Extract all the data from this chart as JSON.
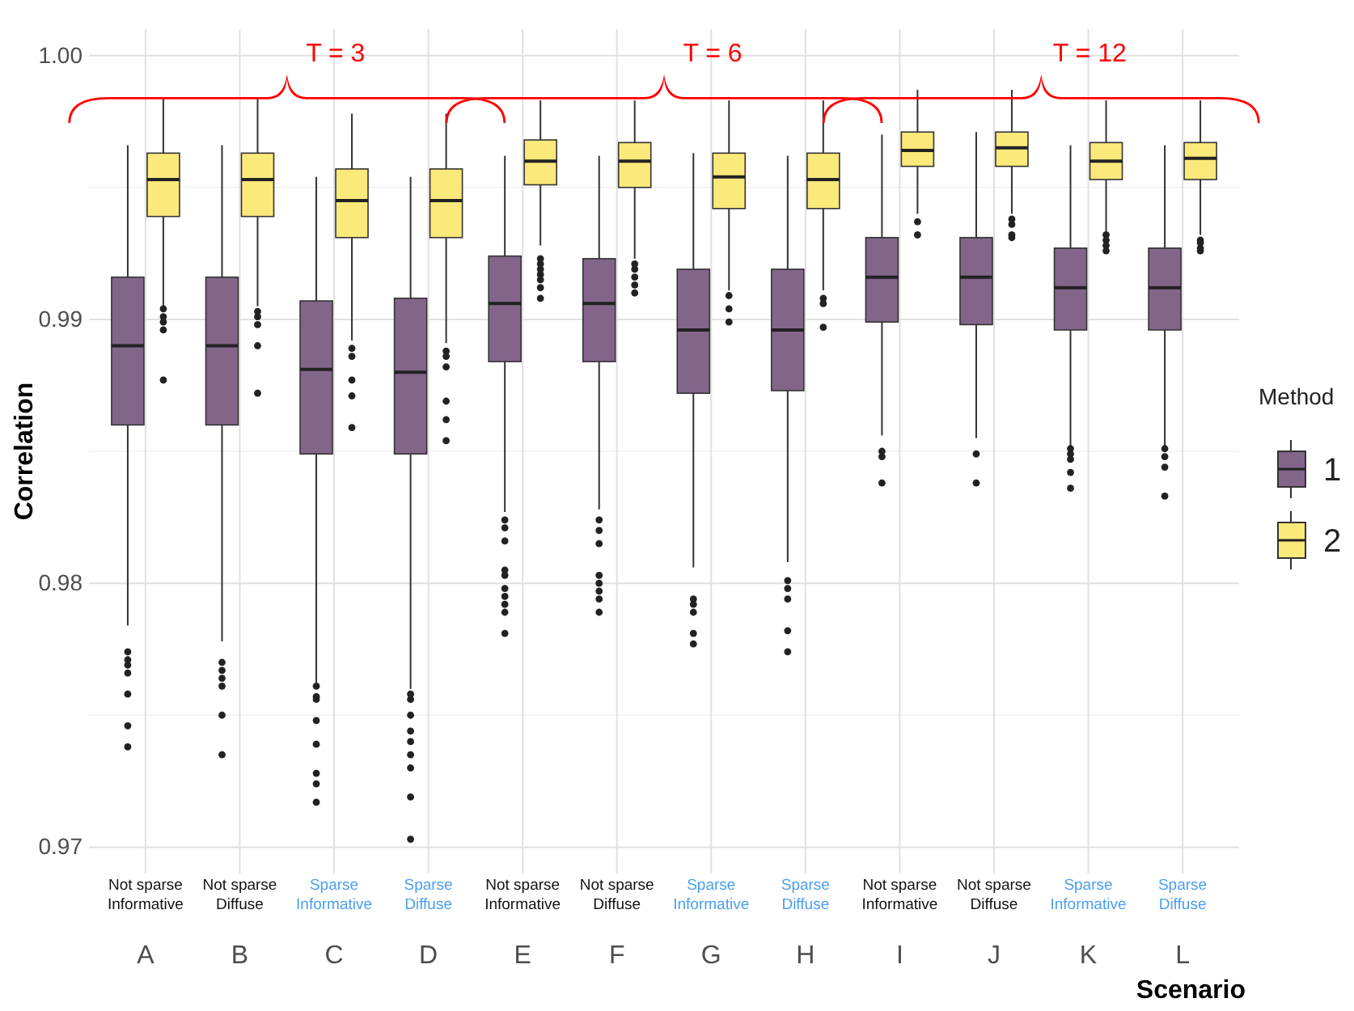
{
  "chart_data": {
    "type": "box",
    "xlabel": "Scenario",
    "ylabel": "Correlation",
    "legend_title": "Method",
    "categories": [
      "A",
      "B",
      "C",
      "D",
      "E",
      "F",
      "G",
      "H",
      "I",
      "J",
      "K",
      "L"
    ],
    "ylim": [
      0.969,
      1.001
    ],
    "yticks": [
      0.97,
      0.98,
      0.99,
      {
        "value": 1,
        "label": "1.00"
      }
    ],
    "grid": true,
    "legend": "right",
    "annotations": [
      "T = 3",
      "T = 6",
      "T = 12",
      "Not sparse\nInformative",
      "Not sparse\nDiffuse",
      "Sparse\nInformative",
      "Sparse\nDiffuse",
      "Not sparse\nInformative",
      "Not sparse\nDiffuse",
      "Sparse\nInformative",
      "Sparse\nDiffuse",
      "Not sparse\nInformative",
      "Not sparse\nDiffuse",
      "Sparse\nInformative",
      "Sparse\nDiffuse"
    ],
    "series": [
      {
        "name": "1",
        "color": "#83658a",
        "boxes": [
          {
            "low": 0.9784,
            "q1": 0.986,
            "median": 0.989,
            "q3": 0.9916,
            "high": 0.9966,
            "outliers": [
              0.9774,
              0.9771,
              0.9769,
              0.9766,
              0.9758,
              0.9746,
              0.9738
            ]
          },
          {
            "low": 0.9778,
            "q1": 0.986,
            "median": 0.989,
            "q3": 0.9916,
            "high": 0.9966,
            "outliers": [
              0.977,
              0.9767,
              0.9764,
              0.9761,
              0.975,
              0.9735
            ]
          },
          {
            "low": 0.9762,
            "q1": 0.9849,
            "median": 0.9881,
            "q3": 0.9907,
            "high": 0.9954,
            "outliers": [
              0.9761,
              0.9757,
              0.9756,
              0.9748,
              0.9739,
              0.9728,
              0.9724,
              0.9717
            ]
          },
          {
            "low": 0.976,
            "q1": 0.9849,
            "median": 0.988,
            "q3": 0.9908,
            "high": 0.9954,
            "outliers": [
              0.9758,
              0.9756,
              0.975,
              0.9744,
              0.974,
              0.9735,
              0.973,
              0.9719,
              0.9703
            ]
          },
          {
            "low": 0.9827,
            "q1": 0.9884,
            "median": 0.9906,
            "q3": 0.9924,
            "high": 0.9962,
            "outliers": [
              0.9824,
              0.9821,
              0.9816,
              0.9805,
              0.9803,
              0.9798,
              0.9795,
              0.9792,
              0.9789,
              0.9781
            ]
          },
          {
            "low": 0.9828,
            "q1": 0.9884,
            "median": 0.9906,
            "q3": 0.9923,
            "high": 0.9962,
            "outliers": [
              0.9824,
              0.982,
              0.9815,
              0.9803,
              0.98,
              0.9797,
              0.9794,
              0.9789
            ]
          },
          {
            "low": 0.9806,
            "q1": 0.9872,
            "median": 0.9896,
            "q3": 0.9919,
            "high": 0.9963,
            "outliers": [
              0.9794,
              0.9792,
              0.9789,
              0.9781,
              0.9777
            ]
          },
          {
            "low": 0.9808,
            "q1": 0.9873,
            "median": 0.9896,
            "q3": 0.9919,
            "high": 0.9962,
            "outliers": [
              0.9801,
              0.9798,
              0.9794,
              0.9782,
              0.9774
            ]
          },
          {
            "low": 0.9856,
            "q1": 0.9899,
            "median": 0.9916,
            "q3": 0.9931,
            "high": 0.997,
            "outliers": [
              0.985,
              0.9848,
              0.9838
            ]
          },
          {
            "low": 0.9855,
            "q1": 0.9898,
            "median": 0.9916,
            "q3": 0.9931,
            "high": 0.9971,
            "outliers": [
              0.9849,
              0.9838
            ]
          },
          {
            "low": 0.9852,
            "q1": 0.9896,
            "median": 0.9912,
            "q3": 0.9927,
            "high": 0.9966,
            "outliers": [
              0.9851,
              0.9849,
              0.9847,
              0.9842,
              0.9836
            ]
          },
          {
            "low": 0.9852,
            "q1": 0.9896,
            "median": 0.9912,
            "q3": 0.9927,
            "high": 0.9966,
            "outliers": [
              0.9851,
              0.9848,
              0.9844,
              0.9833
            ]
          }
        ]
      },
      {
        "name": "2",
        "color": "#fce97b",
        "boxes": [
          {
            "low": 0.9905,
            "q1": 0.9939,
            "median": 0.9953,
            "q3": 0.9963,
            "high": 0.9984,
            "outliers": [
              0.9904,
              0.9901,
              0.9899,
              0.9896,
              0.9877
            ]
          },
          {
            "low": 0.9905,
            "q1": 0.9939,
            "median": 0.9953,
            "q3": 0.9963,
            "high": 0.9984,
            "outliers": [
              0.9903,
              0.9901,
              0.9898,
              0.989,
              0.9872
            ]
          },
          {
            "low": 0.9892,
            "q1": 0.9931,
            "median": 0.9945,
            "q3": 0.9957,
            "high": 0.9978,
            "outliers": [
              0.9889,
              0.9886,
              0.9877,
              0.9871,
              0.9859
            ]
          },
          {
            "low": 0.9891,
            "q1": 0.9931,
            "median": 0.9945,
            "q3": 0.9957,
            "high": 0.9978,
            "outliers": [
              0.9888,
              0.9886,
              0.9882,
              0.9869,
              0.9862,
              0.9854
            ]
          },
          {
            "low": 0.9928,
            "q1": 0.9951,
            "median": 0.996,
            "q3": 0.9968,
            "high": 0.9983,
            "outliers": [
              0.9923,
              0.9921,
              0.9919,
              0.9917,
              0.9915,
              0.9912,
              0.9908
            ]
          },
          {
            "low": 0.9923,
            "q1": 0.995,
            "median": 0.996,
            "q3": 0.9967,
            "high": 0.9983,
            "outliers": [
              0.9921,
              0.9919,
              0.9916,
              0.9913,
              0.991
            ]
          },
          {
            "low": 0.9911,
            "q1": 0.9942,
            "median": 0.9954,
            "q3": 0.9963,
            "high": 0.9983,
            "outliers": [
              0.9909,
              0.9904,
              0.9899
            ]
          },
          {
            "low": 0.9911,
            "q1": 0.9942,
            "median": 0.9953,
            "q3": 0.9963,
            "high": 0.9983,
            "outliers": [
              0.9908,
              0.9906,
              0.9897
            ]
          },
          {
            "low": 0.994,
            "q1": 0.9958,
            "median": 0.9964,
            "q3": 0.9971,
            "high": 0.9987,
            "outliers": [
              0.9937,
              0.9932
            ]
          },
          {
            "low": 0.994,
            "q1": 0.9958,
            "median": 0.9965,
            "q3": 0.9971,
            "high": 0.9987,
            "outliers": [
              0.9938,
              0.9936,
              0.9932,
              0.9931
            ]
          },
          {
            "low": 0.9933,
            "q1": 0.9953,
            "median": 0.996,
            "q3": 0.9967,
            "high": 0.9983,
            "outliers": [
              0.9932,
              0.993,
              0.9928,
              0.9926
            ]
          },
          {
            "low": 0.9932,
            "q1": 0.9953,
            "median": 0.9961,
            "q3": 0.9967,
            "high": 0.9983,
            "outliers": [
              0.993,
              0.9929,
              0.9927,
              0.9926
            ]
          }
        ]
      }
    ]
  }
}
